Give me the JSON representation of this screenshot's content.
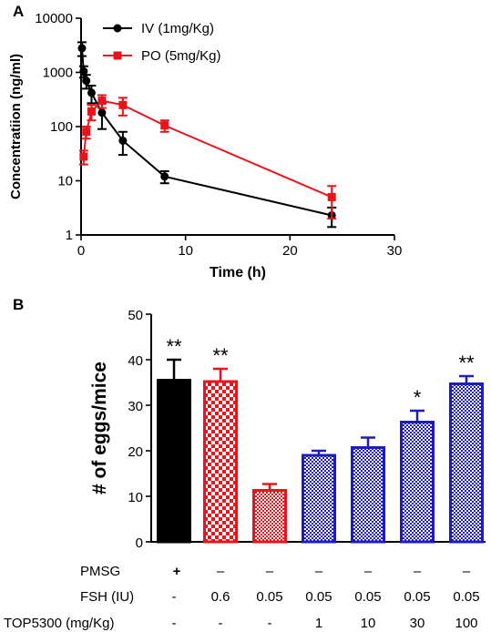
{
  "chart_data": [
    {
      "panel": "A",
      "type": "line",
      "xlabel": "Time (h)",
      "ylabel": "Concentratiion (ng/ml)",
      "xlim": [
        0,
        30
      ],
      "xticks": [
        "0",
        "10",
        "20",
        "30"
      ],
      "ylim": [
        1,
        10000
      ],
      "yscale": "log",
      "yticks": [
        "1",
        "10",
        "100",
        "1000",
        "10000"
      ],
      "legend_position": "top-left",
      "series": [
        {
          "name": "IV (1mg/Kg)",
          "color": "#000000",
          "marker": "circle",
          "x": [
            0.083,
            0.25,
            0.5,
            1,
            2,
            4,
            8,
            24
          ],
          "y": [
            2800,
            1050,
            700,
            420,
            180,
            55,
            12,
            2.3
          ],
          "err": [
            800,
            250,
            200,
            150,
            90,
            25,
            3,
            0.9
          ]
        },
        {
          "name": "PO (5mg/Kg)",
          "color": "#e8141b",
          "marker": "square",
          "x": [
            0.25,
            0.5,
            1,
            2,
            4,
            8,
            24
          ],
          "y": [
            28,
            80,
            190,
            300,
            250,
            105,
            5
          ],
          "err": [
            8,
            20,
            60,
            80,
            90,
            25,
            3
          ]
        }
      ]
    },
    {
      "panel": "B",
      "type": "bar",
      "ylabel": "# of eggs/mice",
      "ylim": [
        0,
        50
      ],
      "yticks": [
        "0",
        "10",
        "20",
        "30",
        "40",
        "50"
      ],
      "values": [
        35.5,
        35.2,
        11.3,
        19,
        20.7,
        26.3,
        34.7
      ],
      "errors": [
        4.5,
        2.8,
        1.4,
        1.0,
        2.2,
        2.5,
        1.7
      ],
      "colors": [
        "#000000",
        "#e8141b",
        "#e8141b",
        "#1d1dbf",
        "#1d1dbf",
        "#1d1dbf",
        "#1d1dbf"
      ],
      "fills": [
        "solid",
        "checker",
        "checker-fine",
        "mesh",
        "mesh",
        "mesh",
        "mesh"
      ],
      "significance": [
        "**",
        "**",
        "",
        "",
        "",
        "*",
        "**"
      ],
      "conditions": [
        {
          "label": "PMSG",
          "values": [
            "+",
            "–",
            "–",
            "–",
            "–",
            "–",
            "–"
          ]
        },
        {
          "label": "FSH (IU)",
          "values": [
            "-",
            "0.6",
            "0.05",
            "0.05",
            "0.05",
            "0.05",
            "0.05"
          ]
        },
        {
          "label": "TOP5300 (mg/Kg)",
          "values": [
            "-",
            "-",
            "-",
            "1",
            "10",
            "30",
            "100"
          ]
        }
      ]
    }
  ]
}
